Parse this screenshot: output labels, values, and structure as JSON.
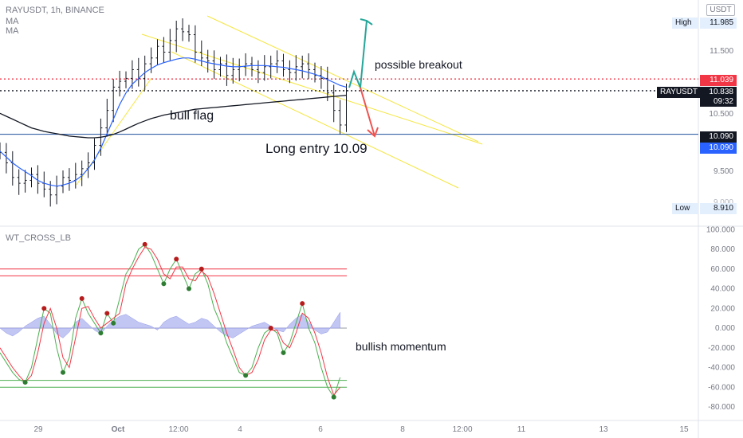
{
  "header": {
    "symbol_line": "RAYUSDT, 1h, BINANCE",
    "ma1": "MA",
    "ma2": "MA",
    "currency": "USDT"
  },
  "indicator": {
    "name": "WT_CROSS_LB"
  },
  "annotations": {
    "breakout": "possible breakout",
    "flag": "bull flag",
    "entry": "Long entry 10.09",
    "momentum": "bullish momentum"
  },
  "price_axis": {
    "high_label": "High",
    "high_value": "11.985",
    "low_label": "Low",
    "low_value": "8.910",
    "ticks": [
      "11.500",
      "10.500",
      "9.500",
      "9.000"
    ],
    "red_level": "11.039",
    "symbol_tag": "RAYUSDT",
    "last_price": "10.838",
    "countdown": "09:32",
    "entry_level": "10.090",
    "entry_level_2": "10.090"
  },
  "osc_axis": {
    "ticks": [
      "100.000",
      "80.000",
      "60.000",
      "40.000",
      "20.000",
      "0.000",
      "-20.000",
      "-40.000",
      "-60.000",
      "-80.000"
    ]
  },
  "time_axis": {
    "labels": [
      "29",
      "Oct",
      "12:00",
      "4",
      "6",
      "8",
      "12:00",
      "11",
      "13",
      "15"
    ]
  },
  "colors": {
    "up_arrow": "#26a69a",
    "down_arrow": "#ef5350",
    "ma_blue": "#2962ff",
    "ma_black": "#131722",
    "channel": "#f5e642",
    "red_level": "#f23645",
    "entry_line": "#1e4f9c",
    "wt_green": "#4caf50",
    "wt_red": "#f23645",
    "hist": "#b3b8f0"
  },
  "chart_data": [
    {
      "type": "candlestick",
      "title": "RAYUSDT, 1h, BINANCE",
      "ylim": [
        8.9,
        12.1
      ],
      "x": [
        0,
        2,
        4,
        6,
        8,
        10,
        12,
        14,
        16,
        18,
        20,
        22,
        24,
        26,
        28,
        30,
        32,
        34,
        36,
        38,
        40,
        42,
        44,
        46,
        48,
        50,
        52,
        54,
        56,
        58,
        60,
        62,
        64,
        66,
        68,
        70,
        72,
        74,
        76,
        78,
        80,
        82,
        84,
        86,
        88,
        90,
        92,
        94,
        96,
        98,
        100,
        102,
        104,
        106,
        108,
        110
      ],
      "close": [
        9.78,
        9.6,
        9.35,
        9.25,
        9.3,
        9.4,
        9.25,
        9.15,
        9.05,
        9.2,
        9.35,
        9.3,
        9.4,
        9.5,
        9.6,
        9.9,
        10.2,
        10.5,
        10.9,
        11.0,
        11.05,
        11.2,
        11.05,
        11.3,
        11.4,
        11.6,
        11.5,
        11.7,
        11.9,
        11.85,
        11.8,
        11.5,
        11.4,
        11.35,
        11.2,
        11.3,
        11.1,
        11.2,
        11.25,
        11.3,
        11.2,
        11.15,
        11.25,
        11.3,
        11.35,
        11.2,
        11.15,
        11.25,
        11.3,
        11.2,
        11.1,
        11.05,
        10.8,
        10.5,
        10.25,
        10.84
      ],
      "ma_fast": [
        9.8,
        9.7,
        9.6,
        9.52,
        9.45,
        9.38,
        9.3,
        9.25,
        9.22,
        9.2,
        9.22,
        9.25,
        9.3,
        9.38,
        9.5,
        9.65,
        9.85,
        10.1,
        10.35,
        10.6,
        10.8,
        10.95,
        11.05,
        11.15,
        11.22,
        11.28,
        11.32,
        11.35,
        11.38,
        11.4,
        11.4,
        11.38,
        11.35,
        11.32,
        11.3,
        11.28,
        11.26,
        11.25,
        11.25,
        11.26,
        11.27,
        11.27,
        11.27,
        11.26,
        11.25,
        11.24,
        11.22,
        11.2,
        11.18,
        11.15,
        11.12,
        11.08,
        11.03,
        10.98,
        10.93,
        10.9
      ],
      "ma_slow": [
        10.45,
        10.4,
        10.35,
        10.3,
        10.25,
        10.2,
        10.17,
        10.14,
        10.12,
        10.1,
        10.08,
        10.06,
        10.05,
        10.04,
        10.03,
        10.03,
        10.04,
        10.06,
        10.09,
        10.13,
        10.18,
        10.23,
        10.28,
        10.32,
        10.36,
        10.39,
        10.42,
        10.44,
        10.46,
        10.48,
        10.5,
        10.52,
        10.53,
        10.54,
        10.55,
        10.56,
        10.57,
        10.58,
        10.59,
        10.6,
        10.61,
        10.62,
        10.63,
        10.64,
        10.65,
        10.66,
        10.67,
        10.68,
        10.69,
        10.7,
        10.71,
        10.72,
        10.73,
        10.74,
        10.75,
        10.76
      ],
      "levels": {
        "resistance": 11.039,
        "entry": 10.09,
        "last": 10.838,
        "high": 11.985,
        "low": 8.91
      }
    },
    {
      "type": "line",
      "title": "WT_CROSS_LB",
      "ylim": [
        -90,
        105
      ],
      "x": [
        0,
        4,
        8,
        12,
        16,
        20,
        24,
        28,
        32,
        36,
        40,
        44,
        48,
        52,
        56,
        60,
        64,
        68,
        72,
        76,
        80,
        84,
        88,
        92,
        96,
        100,
        104,
        108,
        112,
        116,
        120,
        124,
        128,
        132,
        136,
        140,
        144,
        148,
        152,
        156,
        160,
        164,
        168,
        172,
        176,
        180,
        184,
        188,
        192,
        196,
        200,
        204,
        208,
        212,
        216
      ],
      "series": [
        {
          "values": [
            -25,
            -35,
            -45,
            -52,
            -55,
            -40,
            -10,
            20,
            15,
            -20,
            -45,
            -30,
            10,
            30,
            15,
            5,
            -5,
            15,
            5,
            30,
            55,
            65,
            80,
            85,
            75,
            60,
            45,
            60,
            70,
            55,
            40,
            55,
            60,
            45,
            20,
            5,
            -15,
            -30,
            -45,
            -48,
            -40,
            -20,
            -5,
            0,
            -5,
            -25,
            -15,
            5,
            25,
            0,
            -15,
            -40,
            -60,
            -70,
            -50
          ]
        },
        {
          "values": [
            -20,
            -30,
            -40,
            -48,
            -55,
            -48,
            -25,
            5,
            20,
            0,
            -30,
            -40,
            -10,
            20,
            22,
            10,
            0,
            5,
            10,
            15,
            45,
            60,
            72,
            82,
            80,
            70,
            55,
            50,
            62,
            62,
            50,
            48,
            58,
            52,
            35,
            15,
            -5,
            -22,
            -40,
            -48,
            -45,
            -32,
            -12,
            -2,
            -2,
            -15,
            -20,
            -5,
            15,
            10,
            -5,
            -25,
            -50,
            -68,
            -60
          ]
        }
      ],
      "histogram": [
        0,
        -5,
        -8,
        -4,
        2,
        6,
        10,
        12,
        4,
        -6,
        -10,
        -4,
        6,
        10,
        4,
        -2,
        -6,
        2,
        8,
        12,
        14,
        10,
        6,
        4,
        2,
        -2,
        6,
        10,
        12,
        8,
        4,
        6,
        10,
        8,
        2,
        -4,
        -8,
        -10,
        -6,
        -2,
        2,
        4,
        6,
        2,
        -2,
        -4,
        4,
        10,
        14,
        6,
        -2,
        -6,
        -4,
        6,
        16
      ],
      "levels": [
        60,
        53,
        -53,
        -60
      ]
    }
  ]
}
